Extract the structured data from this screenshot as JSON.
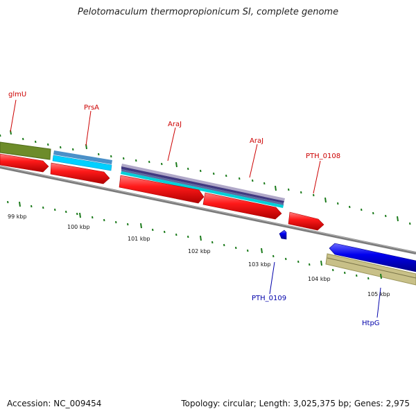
{
  "title": "Pelotomaculum thermopropionicum SI, complete genome",
  "footer": {
    "accession": "Accession: NC_009454",
    "summary": "Topology: circular; Length: 3,025,375 bp; Genes: 2,975"
  },
  "gene_labels": {
    "glmU": "glmU",
    "PrsA": "PrsA",
    "AraJ_1": "AraJ",
    "AraJ_2": "AraJ",
    "PTH_0108": "PTH_0108",
    "PTH_0109": "PTH_0109",
    "HtpG": "HtpG"
  },
  "ruler": [
    "99 kbp",
    "100 kbp",
    "101 kbp",
    "102 kbp",
    "103 kbp",
    "104 kbp",
    "105 kbp"
  ],
  "colors": {
    "forward_label": "#cc0000",
    "reverse_label": "#0000aa",
    "cds_red": "#ff1a1a",
    "cds_blue": "#0000ee",
    "tick_green": "#1a7a1a",
    "backbone": "#888888"
  }
}
